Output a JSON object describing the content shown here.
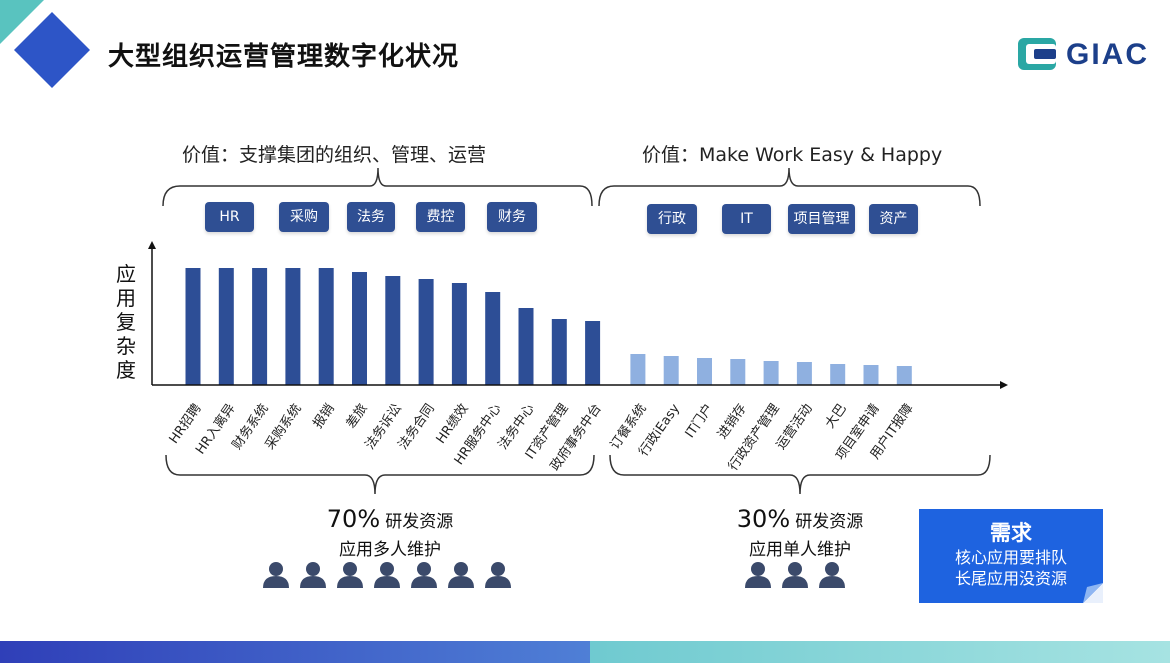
{
  "header": {
    "title": "大型组织运营管理数字化状况",
    "logo_text": "GIAC"
  },
  "values": {
    "left": "价值：支撑集团的组织、管理、运营",
    "right": "价值：Make Work Easy & Happy"
  },
  "tags_left": [
    "HR",
    "采购",
    "法务",
    "费控",
    "财务"
  ],
  "tags_right": [
    "行政",
    "IT",
    "项目管理",
    "资产"
  ],
  "chart_data": {
    "type": "bar",
    "ylabel": "应用复杂度",
    "categories": [
      "HR招聘",
      "HR入离异",
      "财务系统",
      "采购系统",
      "报销",
      "差旅",
      "法务诉讼",
      "法务合同",
      "HR绩效",
      "HR服务中心",
      "法务中心",
      "IT资产管理",
      "政府事务中台",
      "订餐系统",
      "行政iEasy",
      "IT门户",
      "进销存",
      "行政资产管理",
      "运营活动",
      "大巴",
      "项目室申请",
      "用户IT报障"
    ],
    "values": [
      117,
      117,
      117,
      117,
      117,
      113,
      109,
      106,
      102,
      93,
      77,
      66,
      64,
      31,
      29,
      27,
      26,
      24,
      23,
      21,
      20,
      19
    ],
    "series_colors": [
      "#2d4e96",
      "#8fb0e0"
    ],
    "group_split": 13,
    "ylim": [
      0,
      140
    ]
  },
  "stats": {
    "left_percent": "70%",
    "left_label": "研发资源",
    "left_line2": "应用多人维护",
    "right_percent": "30%",
    "right_label": "研发资源",
    "right_line2": "应用单人维护",
    "left_people": 7,
    "right_people": 3
  },
  "need": {
    "title": "需求",
    "line1": "核心应用要排队",
    "line2": "长尾应用没资源"
  },
  "colors": {
    "tag_bg": "#2f4f93",
    "need_bg": "#1e63e0",
    "person": "#3b4a6b"
  }
}
